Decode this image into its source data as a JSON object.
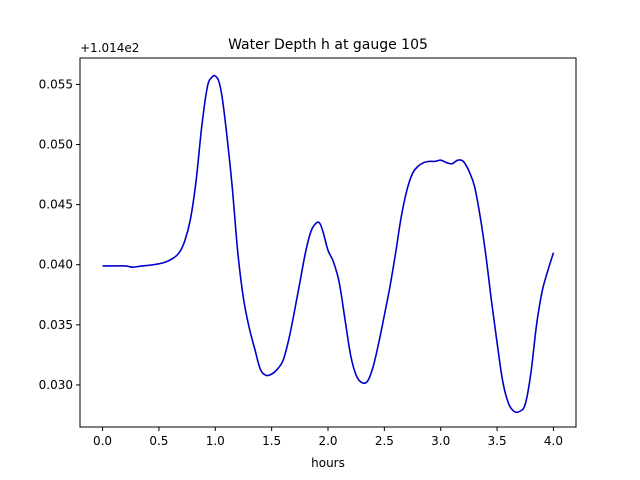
{
  "chart_data": {
    "type": "line",
    "title": "Water Depth h at gauge 105",
    "xlabel": "hours",
    "ylabel": "",
    "y_offset_label": "+1.014e2",
    "xlim": [
      -0.2,
      4.2
    ],
    "ylim": [
      0.0265,
      0.0572
    ],
    "x_ticks": [
      0.0,
      0.5,
      1.0,
      1.5,
      2.0,
      2.5,
      3.0,
      3.5,
      4.0
    ],
    "x_tick_labels": [
      "0.0",
      "0.5",
      "1.0",
      "1.5",
      "2.0",
      "2.5",
      "3.0",
      "3.5",
      "4.0"
    ],
    "y_ticks": [
      0.03,
      0.035,
      0.04,
      0.045,
      0.05,
      0.055
    ],
    "y_tick_labels": [
      "0.030",
      "0.035",
      "0.040",
      "0.045",
      "0.050",
      "0.055"
    ],
    "grid": false,
    "series": [
      {
        "color": "#0000cc",
        "x": [
          0.0,
          0.1,
          0.2,
          0.27,
          0.35,
          0.45,
          0.55,
          0.62,
          0.68,
          0.73,
          0.78,
          0.83,
          0.88,
          0.93,
          0.97,
          1.0,
          1.03,
          1.06,
          1.1,
          1.15,
          1.2,
          1.25,
          1.3,
          1.35,
          1.4,
          1.45,
          1.5,
          1.55,
          1.6,
          1.65,
          1.7,
          1.75,
          1.8,
          1.85,
          1.9,
          1.93,
          1.96,
          2.0,
          2.05,
          2.1,
          2.15,
          2.2,
          2.25,
          2.3,
          2.35,
          2.4,
          2.45,
          2.5,
          2.55,
          2.6,
          2.65,
          2.7,
          2.75,
          2.8,
          2.85,
          2.9,
          2.95,
          3.0,
          3.05,
          3.1,
          3.15,
          3.2,
          3.25,
          3.3,
          3.35,
          3.4,
          3.45,
          3.5,
          3.55,
          3.6,
          3.65,
          3.7,
          3.75,
          3.8,
          3.85,
          3.9,
          3.95,
          4.0
        ],
        "y": [
          0.0399,
          0.0399,
          0.0399,
          0.0398,
          0.0399,
          0.04,
          0.0402,
          0.0405,
          0.041,
          0.042,
          0.0438,
          0.047,
          0.0515,
          0.0548,
          0.0556,
          0.0557,
          0.0553,
          0.054,
          0.051,
          0.0465,
          0.041,
          0.0372,
          0.0348,
          0.033,
          0.0313,
          0.0308,
          0.0309,
          0.0313,
          0.032,
          0.0337,
          0.036,
          0.0385,
          0.041,
          0.0428,
          0.0435,
          0.0434,
          0.0426,
          0.0412,
          0.0402,
          0.0385,
          0.0355,
          0.0325,
          0.0308,
          0.0302,
          0.0303,
          0.0315,
          0.0335,
          0.0358,
          0.0382,
          0.041,
          0.044,
          0.0462,
          0.0476,
          0.0482,
          0.0485,
          0.0486,
          0.0486,
          0.0487,
          0.0485,
          0.0484,
          0.0487,
          0.0486,
          0.0478,
          0.0465,
          0.044,
          0.0408,
          0.037,
          0.0335,
          0.0303,
          0.0285,
          0.0278,
          0.0278,
          0.0284,
          0.031,
          0.035,
          0.0378,
          0.0395,
          0.041
        ]
      }
    ]
  }
}
